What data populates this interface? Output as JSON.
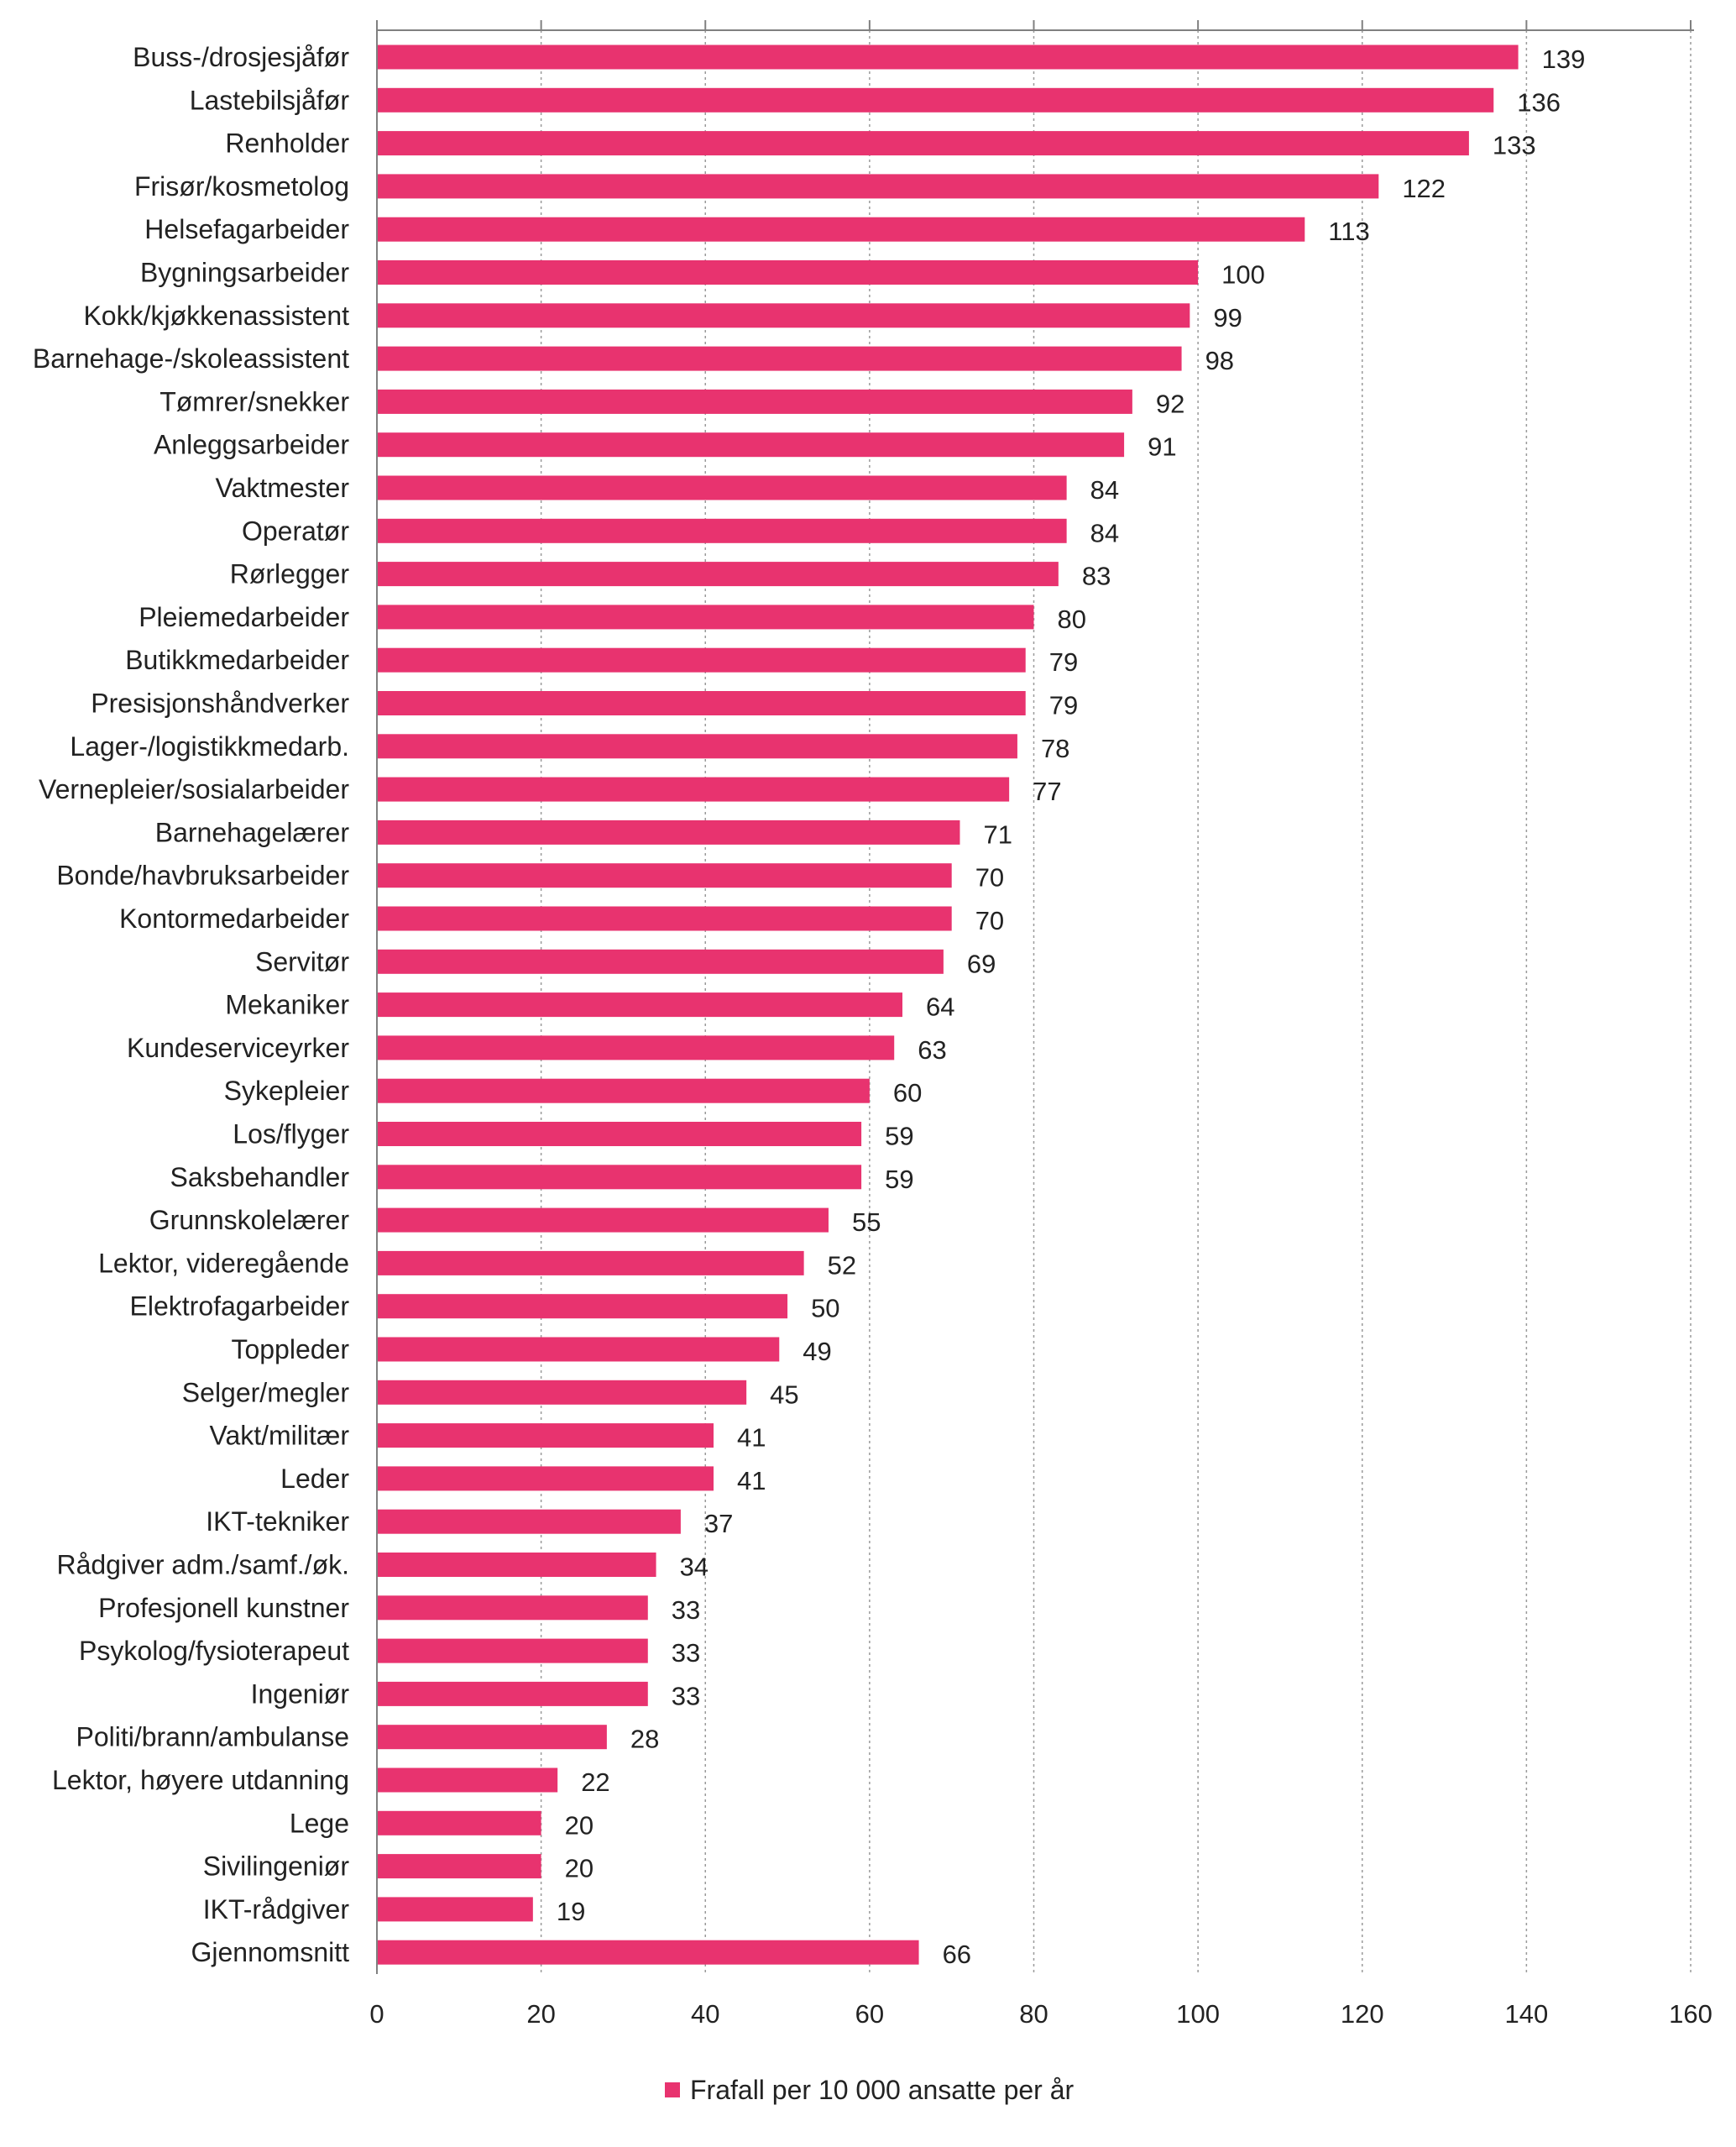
{
  "chart_data": {
    "type": "bar",
    "orientation": "horizontal",
    "categories": [
      "Buss-/drosjesjåfør",
      "Lastebilsjåfør",
      "Renholder",
      "Frisør/kosmetolog",
      "Helsefagarbeider",
      "Bygningsarbeider",
      "Kokk/kjøkkenassistent",
      "Barnehage-/skoleassistent",
      "Tømrer/snekker",
      "Anleggsarbeider",
      "Vaktmester",
      "Operatør",
      "Rørlegger",
      "Pleiemedarbeider",
      "Butikkmedarbeider",
      "Presisjonshåndverker",
      "Lager-/logistikkmedarb.",
      "Vernepleier/sosialarbeider",
      "Barnehagelærer",
      "Bonde/havbruksarbeider",
      "Kontormedarbeider",
      "Servitør",
      "Mekaniker",
      "Kundeserviceyrker",
      "Sykepleier",
      "Los/flyger",
      "Saksbehandler",
      "Grunnskolelærer",
      "Lektor, videregående",
      "Elektrofagarbeider",
      "Toppleder",
      "Selger/megler",
      "Vakt/militær",
      "Leder",
      "IKT-tekniker",
      "Rådgiver adm./samf./øk.",
      "Profesjonell kunstner",
      "Psykolog/fysioterapeut",
      "Ingeniør",
      "Politi/brann/ambulanse",
      "Lektor, høyere utdanning",
      "Lege",
      "Sivilingeniør",
      "IKT-rådgiver",
      "Gjennomsnitt"
    ],
    "series": [
      {
        "name": "Frafall per 10 000 ansatte per år",
        "color": "#e8336f",
        "values": [
          139,
          136,
          133,
          122,
          113,
          100,
          99,
          98,
          92,
          91,
          84,
          84,
          83,
          80,
          79,
          79,
          78,
          77,
          71,
          70,
          70,
          69,
          64,
          63,
          60,
          59,
          59,
          55,
          52,
          50,
          49,
          45,
          41,
          41,
          37,
          34,
          33,
          33,
          33,
          28,
          22,
          20,
          20,
          19,
          66
        ]
      }
    ],
    "xlim": [
      0,
      160
    ],
    "x_ticks": [
      0,
      20,
      40,
      60,
      80,
      100,
      120,
      140,
      160
    ],
    "grid": "vertical dotted",
    "legend_position": "bottom",
    "title": "",
    "xlabel": "",
    "ylabel": ""
  }
}
